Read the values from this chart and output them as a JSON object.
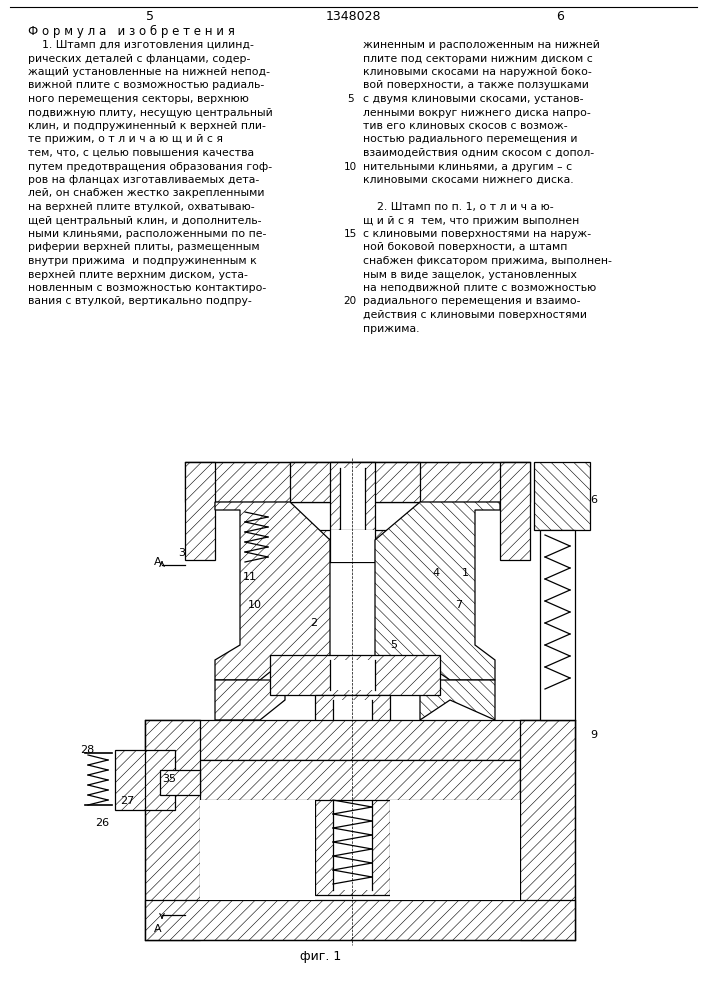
{
  "page_number_left": "5",
  "page_number_right": "6",
  "patent_number": "1348028",
  "header_formula": "Ф о р м у л а   и з о б р е т е н и я",
  "left_text_lines": [
    "    1. Штамп для изготовления цилинд-",
    "рических деталей с фланцами, содер-",
    "жащий установленные на нижней непод-",
    "вижной плите с возможностью радиаль-",
    "ного перемещения секторы, верхнюю",
    "подвижную плиту, несущую центральный",
    "клин, и подпружиненный к верхней пли-",
    "те прижим, о т л и ч а ю щ и й с я",
    "тем, что, с целью повышения качества",
    "путем предотвращения образования гоф-",
    "ров на фланцах изготавливаемых дета-",
    "лей, он снабжен жестко закрепленными",
    "на верхней плите втулкой, охватываю-",
    "щей центральный клин, и дополнитель-",
    "ными клиньями, расположенными по пе-",
    "риферии верхней плиты, размещенным",
    "внутри прижима  и подпружиненным к",
    "верхней плите верхним диском, уста-",
    "новленным с возможностью контактиро-",
    "вания с втулкой, вертикально подпру-"
  ],
  "right_text_lines": [
    "жиненным и расположенным на нижней",
    "плите под секторами нижним диском с",
    "клиновыми скосами на наружной боко-",
    "вой поверхности, а также ползушками",
    "с двумя клиновыми скосами, установ-",
    "ленными вокруг нижнего диска напро-",
    "тив его клиновых скосов с возмож-",
    "ностью радиального перемещения и",
    "взаимодействия одним скосом с допол-",
    "нительными клиньями, а другим – с",
    "клиновыми скосами нижнего диска.",
    "",
    "    2. Штамп по п. 1, о т л и ч а ю-",
    "щ и й с я  тем, что прижим выполнен",
    "с клиновыми поверхностями на наруж-",
    "ной боковой поверхности, а штамп",
    "снабжен фиксатором прижима, выполнен-",
    "ным в виде защелок, установленных",
    "на неподвижной плите с возможностью",
    "радиального перемещения и взаимо-",
    "действия с клиновыми поверхностями",
    "прижима."
  ],
  "fig_label": "фиг. 1",
  "bg_color": "#ffffff",
  "text_color": "#000000"
}
